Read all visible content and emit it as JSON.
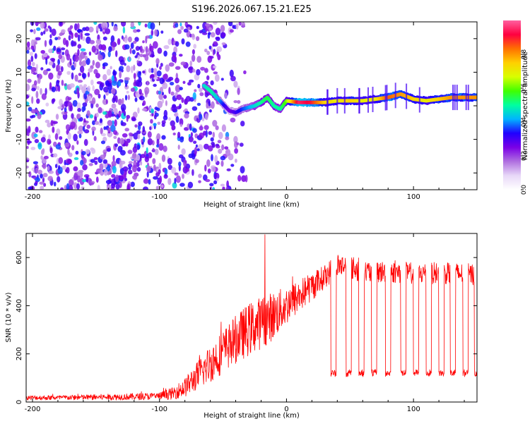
{
  "chart_data": [
    {
      "type": "heatmap",
      "title": "S196.2026.067.15.21.E25",
      "xlabel": "Height of straight line (km)",
      "ylabel": "Frequency (Hz)",
      "xlim": [
        -205,
        150
      ],
      "ylim": [
        -25,
        25
      ],
      "x_ticks": [
        -200,
        -100,
        0,
        100
      ],
      "x_tick_labels": [
        "-200",
        "-100",
        "0",
        "100"
      ],
      "y_ticks": [
        -20,
        -10,
        0,
        10,
        20
      ],
      "y_tick_labels": [
        "-20",
        "-10",
        "0",
        "10",
        "20"
      ],
      "colorbar": {
        "label": "Normalized spectral amplitude",
        "range": [
          0,
          1
        ],
        "ticks": [
          0.0,
          0.2,
          0.4,
          0.6,
          0.8
        ],
        "tick_labels": [
          "0.0",
          "0.2",
          "0.4",
          "0.6",
          "0.8"
        ],
        "colors": [
          "#ffffff",
          "#e8d8f8",
          "#b070e0",
          "#7a00e6",
          "#2000ff",
          "#00b4ff",
          "#00ffa0",
          "#40ff00",
          "#d8ff00",
          "#ffd000",
          "#ff7000",
          "#ff0040",
          "#ff60a0"
        ]
      },
      "noise_region": {
        "x_range": [
          -205,
          -60
        ],
        "f_range": [
          -25,
          25
        ],
        "amplitude": [
          0.1,
          0.35
        ]
      },
      "ridge": {
        "x": [
          -65,
          -60,
          -55,
          -50,
          -45,
          -40,
          -35,
          -30,
          -25,
          -20,
          -15,
          -10,
          -5,
          0,
          10,
          20,
          30,
          40,
          50,
          60,
          70,
          80,
          90,
          100,
          110,
          120,
          130,
          140,
          150
        ],
        "f": [
          6,
          4.5,
          2.5,
          0.5,
          -1.5,
          -2,
          -1,
          -0.5,
          0,
          1,
          2.5,
          0,
          -1,
          1.5,
          1,
          1,
          1,
          1.5,
          1.5,
          1.5,
          2,
          2.5,
          3.5,
          2,
          1.5,
          2,
          2.5,
          2.5,
          2.5
        ],
        "amplitude": [
          0.45,
          0.5,
          0.45,
          0.35,
          0.25,
          0.3,
          0.35,
          0.4,
          0.45,
          0.5,
          0.55,
          0.5,
          0.5,
          0.6,
          0.95,
          0.9,
          0.75,
          0.7,
          0.75,
          0.7,
          0.7,
          0.85,
          0.8,
          0.75,
          0.7,
          0.75,
          0.8,
          0.8,
          0.8
        ]
      }
    },
    {
      "type": "line",
      "xlabel": "Height of straight line (km)",
      "ylabel": "SNR (10 * v/v)",
      "xlim": [
        -205,
        150
      ],
      "ylim": [
        0,
        700
      ],
      "x_ticks": [
        -200,
        -100,
        0,
        100
      ],
      "x_tick_labels": [
        "-200",
        "-100",
        "0",
        "100"
      ],
      "y_ticks": [
        0,
        200,
        400,
        600
      ],
      "y_tick_labels": [
        "0",
        "200",
        "400",
        "600"
      ],
      "color": "#ff0000",
      "envelope": {
        "x": [
          -205,
          -180,
          -150,
          -120,
          -100,
          -90,
          -80,
          -70,
          -60,
          -50,
          -40,
          -30,
          -20,
          -10,
          0,
          10,
          20,
          30,
          40,
          50,
          60,
          80,
          100,
          120,
          150
        ],
        "mean": [
          18,
          18,
          20,
          22,
          25,
          35,
          60,
          110,
          160,
          210,
          260,
          300,
          330,
          360,
          400,
          440,
          480,
          520,
          570,
          560,
          540,
          540,
          535,
          535,
          530
        ],
        "spread": [
          10,
          10,
          12,
          14,
          15,
          25,
          40,
          60,
          80,
          90,
          100,
          110,
          110,
          100,
          80,
          70,
          60,
          50,
          50,
          50,
          50,
          45,
          45,
          45,
          45
        ]
      },
      "spike": {
        "x": -17,
        "y": 695
      },
      "dropouts": {
        "x_start": [
          35,
          47,
          57,
          67,
          78,
          90,
          100,
          110,
          120,
          129,
          139,
          148
        ],
        "x_end": [
          39,
          51,
          61,
          71,
          82,
          94,
          104,
          114,
          124,
          133,
          143,
          150
        ],
        "level": 120
      }
    }
  ]
}
